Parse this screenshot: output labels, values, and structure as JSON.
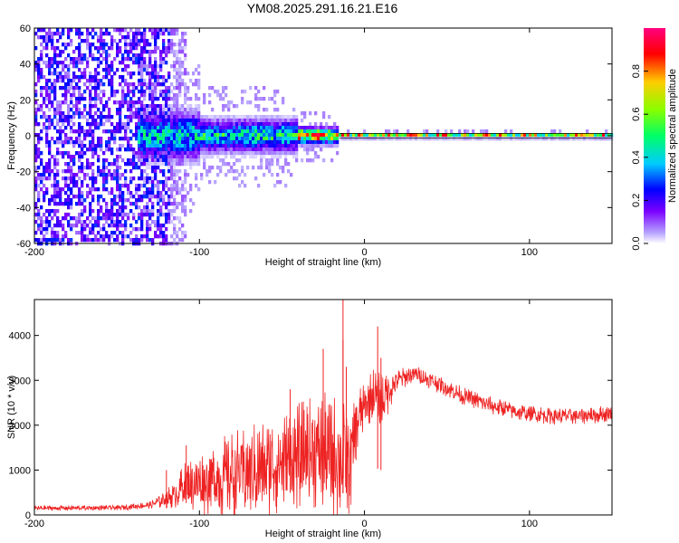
{
  "figure_title": "YM08.2025.291.16.21.E16",
  "colors": {
    "snr_line": "#ee2222",
    "frame": "#000000",
    "background": "#ffffff"
  },
  "colorbar": {
    "label": "Normalized spectral amplitude",
    "ticks": [
      "0.0",
      "0.2",
      "0.4",
      "0.6",
      "0.8"
    ],
    "tick_values": [
      0.0,
      0.2,
      0.4,
      0.6,
      0.8
    ],
    "range": [
      0,
      1
    ],
    "colormap": "rainbow (white-violet-blue-cyan-green-yellow-red-magenta)"
  },
  "chart_data": [
    {
      "type": "heatmap",
      "name": "spectrogram",
      "title": "",
      "xlabel": "Height of straight line (km)",
      "ylabel": "Frequency (Hz)",
      "xlim": [
        -200,
        150
      ],
      "ylim": [
        -60,
        60
      ],
      "xticks": [
        -200,
        -100,
        0,
        100
      ],
      "xtick_labels": [
        "-200",
        "-100",
        "0",
        "100"
      ],
      "yticks": [
        -60,
        -40,
        -20,
        0,
        20,
        40,
        60
      ],
      "ytick_labels": [
        "-60",
        "-40",
        "-20",
        "0",
        "20",
        "40",
        "60"
      ],
      "regions": [
        {
          "x": [
            -200,
            -117
          ],
          "freq_spread": 60,
          "intensity": 0.08,
          "note": "broadband violet noise"
        },
        {
          "x": [
            -117,
            -108
          ],
          "freq_spread": 60,
          "intensity": 0.03,
          "note": "fading noise"
        },
        {
          "x": [
            -137,
            -100
          ],
          "freq_spread": 12,
          "intensity": 0.4
        },
        {
          "x": [
            -100,
            -40
          ],
          "freq_spread": 8,
          "intensity": 0.45
        },
        {
          "x": [
            -40,
            -15
          ],
          "freq_spread": 4,
          "intensity": 0.8
        },
        {
          "x": [
            -15,
            150
          ],
          "freq_spread": 1,
          "intensity": 0.95,
          "note": "narrow line at 0 Hz"
        }
      ]
    },
    {
      "type": "line",
      "name": "snr",
      "title": "",
      "xlabel": "Height of straight line (km)",
      "ylabel": "SNR (10 * v/v)",
      "xlim": [
        -200,
        150
      ],
      "ylim": [
        0,
        4800
      ],
      "xticks": [
        -200,
        -100,
        0,
        100
      ],
      "xtick_labels": [
        "-200",
        "-100",
        "0",
        "100"
      ],
      "yticks": [
        0,
        1000,
        2000,
        3000,
        4000
      ],
      "ytick_labels": [
        "0",
        "1000",
        "2000",
        "3000",
        "4000"
      ],
      "series": [
        {
          "name": "SNR",
          "envelope_x": [
            -200,
            -150,
            -130,
            -115,
            -110,
            -100,
            -80,
            -60,
            -40,
            -30,
            -20,
            -12,
            -8,
            -5,
            0,
            5,
            10,
            15,
            20,
            30,
            40,
            60,
            80,
            100,
            120,
            150
          ],
          "envelope_y": [
            150,
            160,
            220,
            450,
            650,
            700,
            900,
            1050,
            1300,
            1400,
            1350,
            1200,
            1300,
            2000,
            2400,
            2700,
            2500,
            2800,
            3000,
            3150,
            3000,
            2650,
            2400,
            2250,
            2200,
            2250
          ],
          "noise_amplitude": [
            60,
            60,
            80,
            300,
            500,
            700,
            1000,
            1100,
            1200,
            1300,
            1400,
            1400,
            1200,
            900,
            500,
            600,
            800,
            500,
            250,
            200,
            200,
            200,
            200,
            200,
            200,
            200
          ],
          "spikes": [
            {
              "x": -120,
              "y": 1000
            },
            {
              "x": -108,
              "y": 1550
            },
            {
              "x": -45,
              "y": 2800
            },
            {
              "x": -25,
              "y": 3700
            },
            {
              "x": -13,
              "y": 3900
            },
            {
              "x": -13,
              "y": 4800
            },
            {
              "x": -11,
              "y": 3300
            },
            {
              "x": 8,
              "y": 4200
            },
            {
              "x": 10,
              "y": 3500
            }
          ]
        }
      ]
    }
  ]
}
